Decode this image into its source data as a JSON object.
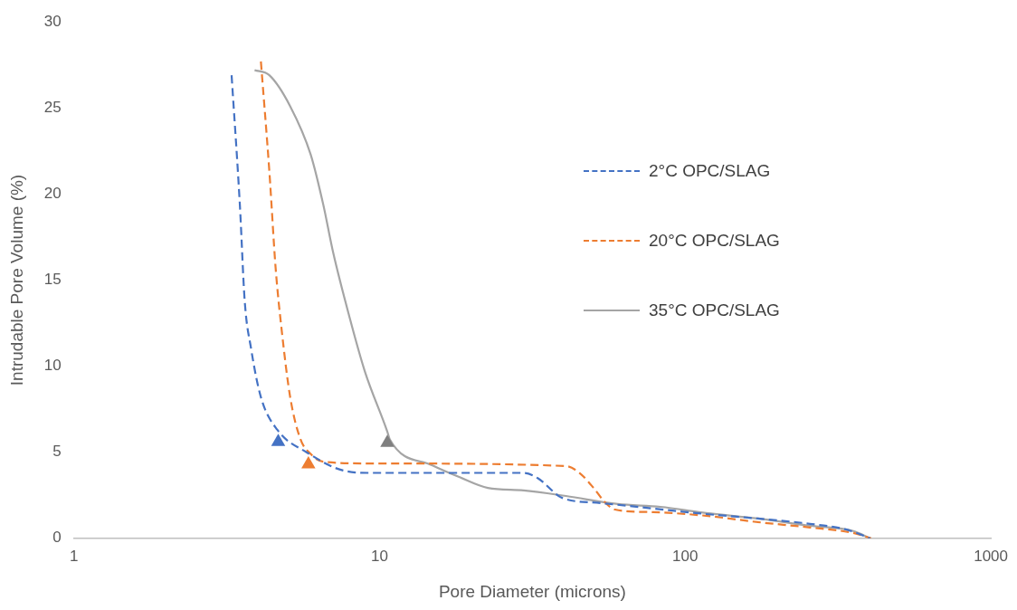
{
  "chart_data": {
    "type": "line",
    "xlabel": "Pore Diameter (microns)",
    "ylabel": "Intrudable Pore Volume (%)",
    "log": "x",
    "xlim": [
      1,
      1000
    ],
    "xticks": [
      1,
      10,
      100,
      1000
    ],
    "ylim": [
      0,
      30
    ],
    "yticks": [
      0,
      5,
      10,
      15,
      20,
      25,
      30
    ],
    "grid": false,
    "legend": "right",
    "marker": "none",
    "series": [
      {
        "name": "2°C OPC/SLAG",
        "color": "#4472c4",
        "line_style": "dashed",
        "x": [
          3.28,
          3.49,
          3.62,
          3.8,
          4.09,
          4.63,
          5.77,
          7.77,
          9.46,
          29.6,
          32.9,
          39.6,
          52.8,
          78.6,
          117,
          173,
          256,
          335,
          403
        ],
        "values": [
          26.9,
          19.4,
          13.8,
          11.0,
          8.2,
          6.3,
          5.0,
          3.9,
          3.8,
          3.8,
          3.5,
          2.35,
          2.05,
          1.73,
          1.41,
          1.15,
          0.84,
          0.52,
          0
        ]
      },
      {
        "name": "20°C OPC/SLAG",
        "color": "#ed7d31",
        "line_style": "dashed",
        "x": [
          4.09,
          4.36,
          4.57,
          4.79,
          5.1,
          5.5,
          5.95,
          6.54,
          9.46,
          40.7,
          45.1,
          50.3,
          54.3,
          58.9,
          78.6,
          117,
          173,
          256,
          355,
          406
        ],
        "values": [
          27.7,
          21.3,
          15.7,
          12.0,
          8.2,
          5.8,
          4.9,
          4.45,
          4.35,
          4.2,
          3.8,
          2.9,
          2.15,
          1.67,
          1.52,
          1.31,
          0.94,
          0.63,
          0.31,
          0
        ]
      },
      {
        "name": "35°C OPC/SLAG",
        "color": "#a5a5a5",
        "line_style": "solid",
        "x": [
          3.9,
          4.36,
          5.1,
          5.95,
          6.54,
          7.05,
          7.96,
          8.95,
          10.6,
          10.8,
          14.9,
          18.3,
          22.6,
          29.6,
          40.7,
          60.2,
          82.9,
          117,
          173,
          256,
          355,
          403
        ],
        "values": [
          27.2,
          26.9,
          25.1,
          22.3,
          19.4,
          16.6,
          12.9,
          9.7,
          6.2,
          5.75,
          4.24,
          3.55,
          2.93,
          2.78,
          2.46,
          1.99,
          1.83,
          1.47,
          1.15,
          0.73,
          0.42,
          0
        ]
      },
      {
        "type": "scatter",
        "marker": "triangle",
        "x": [
          4.66,
          5.85,
          10.6
        ],
        "values": [
          5.6,
          4.3,
          5.55
        ],
        "colors": [
          "#4472c4",
          "#ed7d31",
          "#7f7f7f"
        ]
      }
    ]
  }
}
